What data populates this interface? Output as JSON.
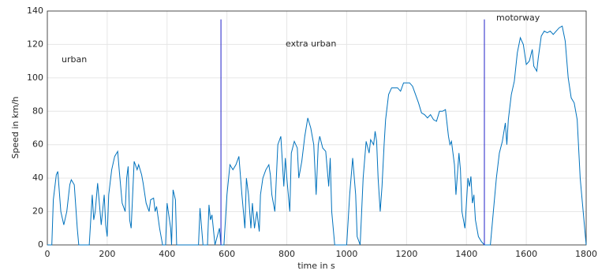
{
  "chart_data": {
    "type": "line",
    "xlabel": "time in s",
    "ylabel": "Speed in km/h",
    "annotations": [
      "urban",
      "extra urban",
      "motorway"
    ],
    "phase_boundaries": [
      580,
      1460
    ],
    "phase_boundary_top": 135,
    "phase_boundary_color": "#2020c8",
    "xlim": [
      0,
      1800
    ],
    "ylim": [
      0,
      140
    ],
    "xticks": [
      0,
      200,
      400,
      600,
      800,
      1000,
      1200,
      1400,
      1600,
      1800
    ],
    "yticks": [
      0,
      20,
      40,
      60,
      80,
      100,
      120,
      140
    ],
    "grid": true,
    "x": [
      0,
      15,
      20,
      30,
      35,
      45,
      55,
      65,
      75,
      80,
      90,
      100,
      105,
      140,
      150,
      155,
      160,
      168,
      180,
      190,
      195,
      200,
      205,
      215,
      225,
      235,
      240,
      250,
      260,
      265,
      270,
      275,
      280,
      285,
      290,
      300,
      305,
      315,
      320,
      330,
      340,
      345,
      355,
      360,
      365,
      375,
      385,
      395,
      400,
      408,
      412,
      415,
      420,
      428,
      432,
      505,
      510,
      520,
      535,
      540,
      545,
      550,
      560,
      575,
      580,
      590,
      600,
      610,
      620,
      630,
      640,
      650,
      660,
      665,
      672,
      680,
      685,
      692,
      700,
      708,
      712,
      720,
      730,
      740,
      745,
      750,
      760,
      770,
      780,
      790,
      795,
      800,
      810,
      815,
      825,
      835,
      840,
      850,
      860,
      870,
      880,
      890,
      898,
      905,
      910,
      920,
      930,
      940,
      945,
      950,
      960,
      1000,
      1010,
      1020,
      1030,
      1035,
      1045,
      1055,
      1065,
      1075,
      1080,
      1090,
      1095,
      1100,
      1105,
      1112,
      1118,
      1125,
      1130,
      1140,
      1150,
      1170,
      1180,
      1190,
      1210,
      1220,
      1230,
      1240,
      1250,
      1260,
      1270,
      1280,
      1290,
      1300,
      1310,
      1320,
      1330,
      1340,
      1345,
      1350,
      1360,
      1365,
      1375,
      1380,
      1385,
      1395,
      1405,
      1410,
      1415,
      1420,
      1425,
      1430,
      1440,
      1450,
      1460,
      1480,
      1490,
      1500,
      1510,
      1520,
      1530,
      1535,
      1540,
      1550,
      1560,
      1570,
      1580,
      1590,
      1600,
      1610,
      1620,
      1625,
      1635,
      1640,
      1650,
      1660,
      1670,
      1680,
      1690,
      1700,
      1710,
      1720,
      1730,
      1740,
      1750,
      1760,
      1770,
      1780,
      1790,
      1800
    ],
    "series": [
      {
        "name": "speed",
        "color": "#0072bd",
        "values": [
          0,
          0,
          27,
          42,
          44,
          20,
          12,
          20,
          36,
          39,
          36,
          10,
          0,
          0,
          30,
          15,
          20,
          37,
          12,
          30,
          12,
          5,
          30,
          45,
          53,
          56,
          45,
          25,
          20,
          40,
          47,
          15,
          10,
          30,
          50,
          45,
          48,
          42,
          37,
          25,
          20,
          27,
          28,
          20,
          23,
          10,
          0,
          0,
          25,
          15,
          10,
          0,
          33,
          27,
          0,
          0,
          22,
          0,
          0,
          24,
          15,
          18,
          0,
          10,
          0,
          0,
          30,
          48,
          45,
          48,
          53,
          30,
          10,
          40,
          30,
          10,
          25,
          10,
          20,
          8,
          30,
          40,
          45,
          48,
          42,
          30,
          20,
          60,
          65,
          35,
          52,
          40,
          20,
          55,
          62,
          58,
          40,
          50,
          65,
          76,
          70,
          60,
          30,
          60,
          65,
          58,
          56,
          35,
          52,
          20,
          0,
          0,
          30,
          52,
          30,
          5,
          0,
          40,
          62,
          55,
          63,
          60,
          68,
          62,
          40,
          20,
          35,
          60,
          75,
          90,
          94,
          94,
          92,
          97,
          97,
          95,
          90,
          85,
          79,
          78,
          76,
          78,
          75,
          74,
          80,
          80,
          81,
          65,
          60,
          62,
          48,
          30,
          55,
          45,
          20,
          10,
          40,
          35,
          41,
          25,
          30,
          15,
          5,
          2,
          0,
          0,
          20,
          40,
          55,
          62,
          73,
          60,
          75,
          90,
          98,
          115,
          124,
          120,
          108,
          110,
          117,
          107,
          104,
          112,
          125,
          128,
          127,
          128,
          126,
          128,
          130,
          131,
          122,
          100,
          88,
          85,
          75,
          40,
          20,
          0
        ]
      }
    ]
  }
}
